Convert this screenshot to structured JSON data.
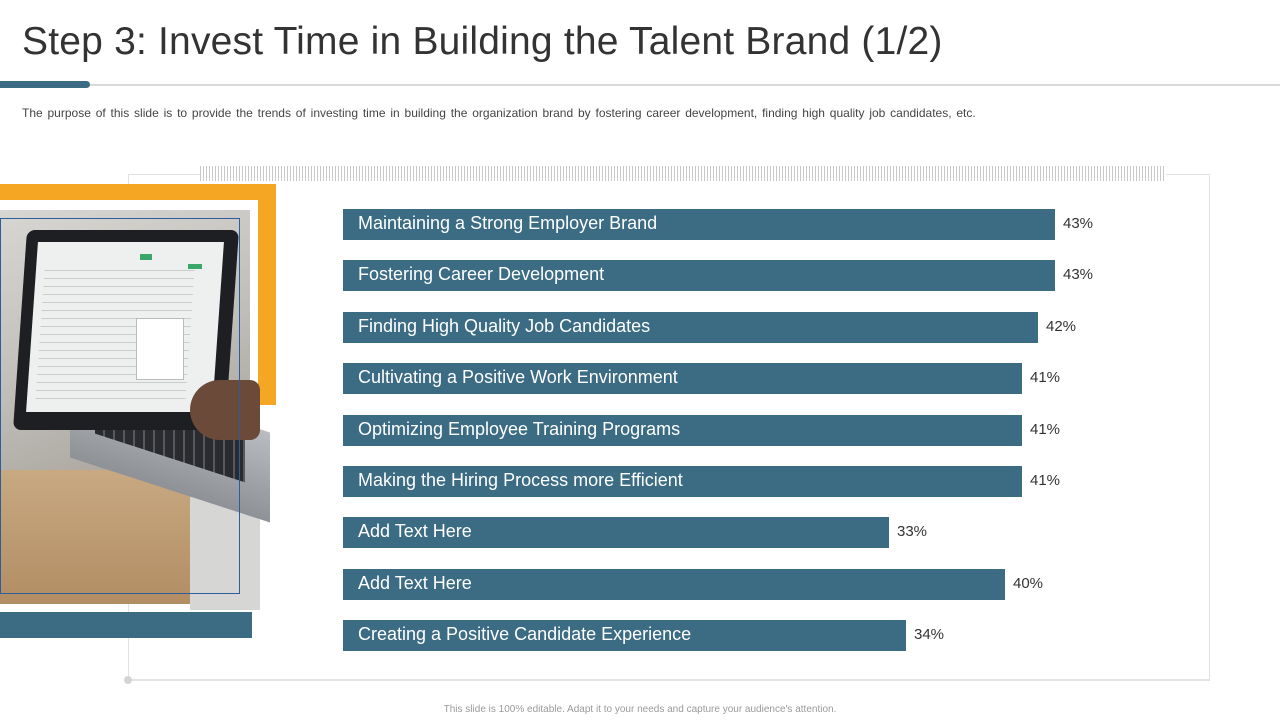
{
  "slide": {
    "title": "Step 3: Invest Time in Building the Talent Brand (1/2)",
    "subtitle": "The purpose of this slide is to provide the trends of investing time in building the organization brand by fostering career development, finding high quality job candidates, etc.",
    "footer": "This slide is 100% editable. Adapt it to your needs and capture your audience's attention."
  },
  "colors": {
    "bar": "#3b6c84",
    "accent_orange": "#f5a623",
    "accent_blue": "#3b6c84"
  },
  "chart_data": {
    "type": "bar",
    "orientation": "horizontal",
    "categories": [
      "Maintaining a Strong Employer Brand",
      "Fostering Career Development",
      "Finding High Quality Job Candidates",
      "Cultivating a Positive Work Environment",
      "Optimizing Employee Training Programs",
      "Making the Hiring Process more Efficient",
      "Add Text Here",
      "Add Text Here",
      "Creating a Positive Candidate Experience"
    ],
    "values": [
      43,
      43,
      42,
      41,
      41,
      41,
      33,
      40,
      34
    ],
    "value_labels": [
      "43%",
      "43%",
      "42%",
      "41%",
      "41%",
      "41%",
      "33%",
      "40%",
      "34%"
    ],
    "unit": "%",
    "grid": false,
    "legend": "none"
  }
}
